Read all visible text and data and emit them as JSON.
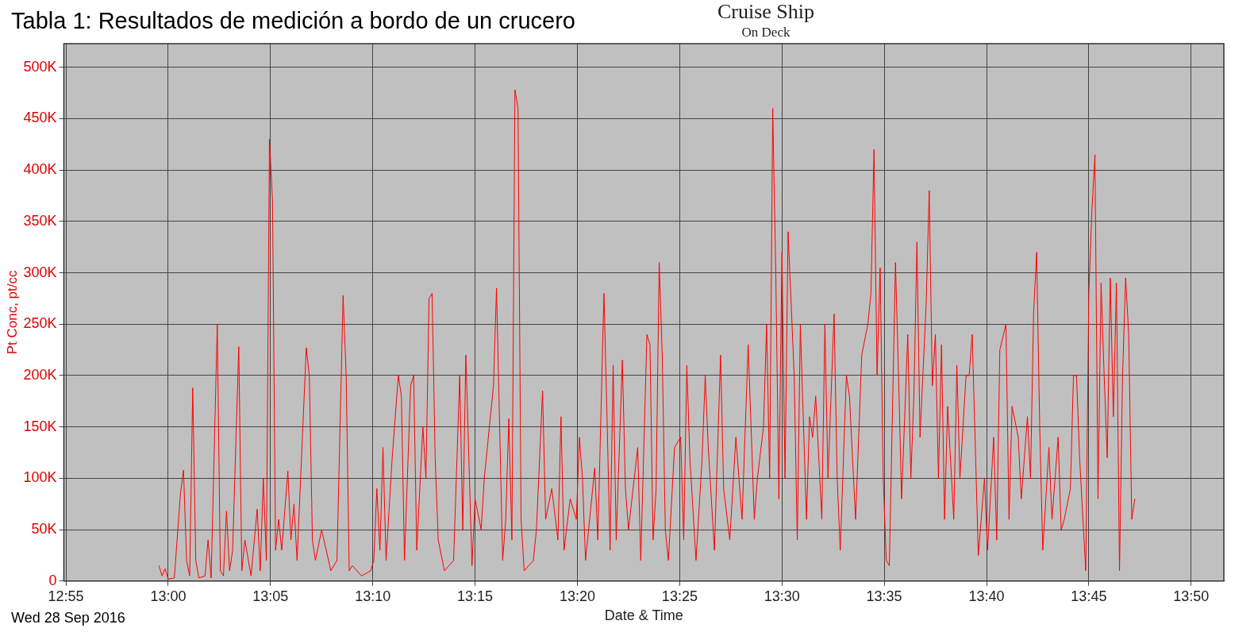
{
  "chart_data": {
    "type": "line",
    "title": "Cruise Ship",
    "subtitle": "On Deck",
    "xlabel": "Date & Time",
    "ylabel": "Pt Conc, pt/cc",
    "annotations": [
      "Tabla 1: Resultados de medición a bordo de un crucero",
      "Wed 28 Sep 2016"
    ],
    "xlim": [
      12.915,
      13.86
    ],
    "xticks": [
      {
        "value": 12.9167,
        "label": "12:55"
      },
      {
        "value": 13,
        "label": "13:00"
      },
      {
        "value": 13.0833,
        "label": "13:05"
      },
      {
        "value": 13.1667,
        "label": "13:10"
      },
      {
        "value": 13.25,
        "label": "13:15"
      },
      {
        "value": 13.3333,
        "label": "13:20"
      },
      {
        "value": 13.4167,
        "label": "13:25"
      },
      {
        "value": 13.5,
        "label": "13:30"
      },
      {
        "value": 13.5833,
        "label": "13:35"
      },
      {
        "value": 13.6667,
        "label": "13:40"
      },
      {
        "value": 13.75,
        "label": "13:45"
      },
      {
        "value": 13.8333,
        "label": "13:50"
      }
    ],
    "ylim": [
      0,
      523000
    ],
    "yticks": [
      0,
      {
        "value": 50000,
        "label": "50K"
      },
      {
        "value": 100000,
        "label": "100K"
      },
      {
        "value": 150000,
        "label": "150K"
      },
      {
        "value": 200000,
        "label": "200K"
      },
      {
        "value": 250000,
        "label": "250K"
      },
      {
        "value": 300000,
        "label": "300K"
      },
      {
        "value": 350000,
        "label": "350K"
      },
      {
        "value": 400000,
        "label": "400K"
      },
      {
        "value": 450000,
        "label": "450K"
      },
      {
        "value": 500000,
        "label": "500K"
      }
    ],
    "grid": true,
    "legend": false,
    "marker": "none",
    "line_style": "solid",
    "x": [
      12.9925,
      12.995,
      12.9975,
      13.0,
      13.005,
      13.01,
      13.0125,
      13.015,
      13.0175,
      13.02,
      13.0225,
      13.025,
      13.03,
      13.0325,
      13.035,
      13.04,
      13.0425,
      13.045,
      13.0475,
      13.05,
      13.0525,
      13.0575,
      13.06,
      13.0625,
      13.0675,
      13.0725,
      13.075,
      13.0775,
      13.08,
      13.0825,
      13.085,
      13.0875,
      13.09,
      13.0925,
      13.0975,
      13.1,
      13.1025,
      13.105,
      13.1125,
      13.115,
      13.1175,
      13.12,
      13.125,
      13.1325,
      13.1375,
      13.1425,
      13.145,
      13.1475,
      13.15,
      13.1575,
      13.165,
      13.1675,
      13.17,
      13.1725,
      13.175,
      13.1775,
      13.1825,
      13.1875,
      13.19,
      13.1925,
      13.1975,
      13.2,
      13.2025,
      13.2075,
      13.21,
      13.2125,
      13.215,
      13.2175,
      13.22,
      13.225,
      13.2325,
      13.2375,
      13.24,
      13.2425,
      13.2475,
      13.25,
      13.255,
      13.2575,
      13.265,
      13.2675,
      13.2725,
      13.275,
      13.2775,
      13.28,
      13.2825,
      13.285,
      13.2875,
      13.29,
      13.2975,
      13.3,
      13.305,
      13.3075,
      13.3125,
      13.3175,
      13.32,
      13.3225,
      13.3275,
      13.3325,
      13.335,
      13.3375,
      13.34,
      13.3475,
      13.35,
      13.355,
      13.3575,
      13.36,
      13.3625,
      13.365,
      13.37,
      13.3725,
      13.375,
      13.3825,
      13.385,
      13.39,
      13.3925,
      13.395,
      13.3975,
      13.4,
      13.4025,
      13.405,
      13.4075,
      13.4125,
      13.4175,
      13.42,
      13.4225,
      13.425,
      13.43,
      13.435,
      13.4375,
      13.44,
      13.445,
      13.45,
      13.4525,
      13.4575,
      13.4625,
      13.4675,
      13.4725,
      13.4775,
      13.48,
      13.485,
      13.4875,
      13.49,
      13.4925,
      13.495,
      13.4975,
      13.5,
      13.5025,
      13.505,
      13.51,
      13.5125,
      13.515,
      13.52,
      13.5225,
      13.525,
      13.5275,
      13.5325,
      13.535,
      13.5375,
      13.5425,
      13.545,
      13.5475,
      13.5525,
      13.555,
      13.56,
      13.565,
      13.57,
      13.5725,
      13.575,
      13.5775,
      13.58,
      13.5825,
      13.585,
      13.5875,
      13.5925,
      13.595,
      13.5975,
      13.6025,
      13.605,
      13.6075,
      13.61,
      13.6125,
      13.6175,
      13.62,
      13.6225,
      13.625,
      13.6275,
      13.63,
      13.6325,
      13.635,
      13.64,
      13.6425,
      13.645,
      13.65,
      13.6525,
      13.655,
      13.66,
      13.665,
      13.6675,
      13.6725,
      13.675,
      13.6775,
      13.6825,
      13.685,
      13.6875,
      13.6925,
      13.695,
      13.7,
      13.7025,
      13.705,
      13.7075,
      13.71,
      13.7125,
      13.7175,
      13.72,
      13.725,
      13.7275,
      13.73,
      13.735,
      13.7375,
      13.74,
      13.7425,
      13.7475,
      13.75,
      13.7525,
      13.755,
      13.7575,
      13.76,
      13.7625,
      13.765,
      13.7675,
      13.77,
      13.7725,
      13.775,
      13.7775,
      13.78,
      13.7825,
      13.785,
      13.7875
    ],
    "series": [
      {
        "color": "#ff0000",
        "values": [
          15000,
          5000,
          12000,
          2000,
          3000,
          85000,
          108000,
          20000,
          5000,
          188000,
          20000,
          3000,
          5000,
          40000,
          3000,
          250000,
          10000,
          5000,
          68000,
          10000,
          30000,
          228000,
          10000,
          40000,
          5000,
          70000,
          10000,
          100000,
          20000,
          430000,
          370000,
          30000,
          60000,
          30000,
          107000,
          40000,
          75000,
          20000,
          227000,
          200000,
          40000,
          20000,
          50000,
          10000,
          20000,
          278000,
          200000,
          10000,
          15000,
          5000,
          10000,
          20000,
          90000,
          30000,
          130000,
          20000,
          120000,
          200000,
          180000,
          20000,
          190000,
          200000,
          30000,
          150000,
          100000,
          275000,
          280000,
          120000,
          40000,
          10000,
          20000,
          200000,
          50000,
          220000,
          15000,
          80000,
          50000,
          100000,
          190000,
          285000,
          20000,
          60000,
          158000,
          40000,
          478000,
          460000,
          60000,
          10000,
          20000,
          50000,
          185000,
          60000,
          90000,
          40000,
          160000,
          30000,
          80000,
          60000,
          140000,
          100000,
          20000,
          110000,
          40000,
          280000,
          160000,
          30000,
          210000,
          40000,
          215000,
          90000,
          50000,
          130000,
          20000,
          240000,
          230000,
          40000,
          90000,
          310000,
          220000,
          50000,
          20000,
          130000,
          140000,
          40000,
          210000,
          120000,
          20000,
          120000,
          200000,
          130000,
          30000,
          220000,
          90000,
          40000,
          140000,
          60000,
          230000,
          60000,
          100000,
          150000,
          250000,
          100000,
          460000,
          300000,
          80000,
          320000,
          100000,
          340000,
          200000,
          40000,
          250000,
          60000,
          160000,
          140000,
          180000,
          60000,
          250000,
          100000,
          260000,
          100000,
          30000,
          200000,
          180000,
          60000,
          220000,
          250000,
          280000,
          420000,
          200000,
          305000,
          100000,
          20000,
          15000,
          310000,
          200000,
          80000,
          240000,
          100000,
          180000,
          330000,
          140000,
          270000,
          380000,
          190000,
          240000,
          100000,
          230000,
          60000,
          170000,
          60000,
          210000,
          100000,
          200000,
          200000,
          240000,
          25000,
          100000,
          30000,
          140000,
          40000,
          225000,
          250000,
          60000,
          170000,
          140000,
          80000,
          160000,
          100000,
          260000,
          320000,
          150000,
          30000,
          130000,
          60000,
          140000,
          50000,
          60000,
          90000,
          200000,
          200000,
          120000,
          10000,
          280000,
          360000,
          415000,
          80000,
          290000,
          200000,
          120000,
          295000,
          160000,
          290000,
          10000,
          200000,
          295000,
          240000,
          60000,
          80000
        ]
      }
    ]
  }
}
